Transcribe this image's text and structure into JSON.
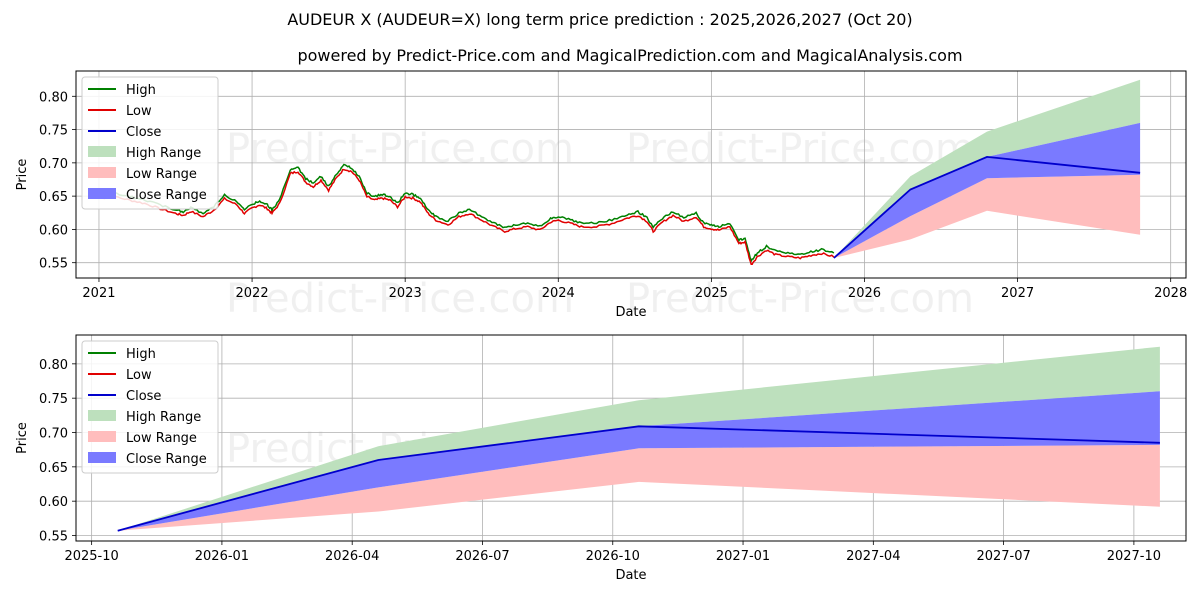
{
  "title": "AUDEUR X (AUDEUR=X) long term price prediction : 2025,2026,2027 (Oct 20)",
  "subtitle": "powered by Predict-Price.com and MagicalPrediction.com and MagicalAnalysis.com",
  "watermark": "Predict-Price.com",
  "colors": {
    "high": "#008000",
    "low": "#e00000",
    "close": "#0000cc",
    "high_range": "#bde0bd",
    "low_range": "#ffbdbd",
    "close_range": "#7a7aff"
  },
  "chart_data": [
    {
      "type": "line",
      "name": "history-and-forecast",
      "xlabel": "Date",
      "ylabel": "Price",
      "xlim": [
        2020.85,
        2028.1
      ],
      "ylim": [
        0.527,
        0.838
      ],
      "x_ticks": [
        2021,
        2022,
        2023,
        2024,
        2025,
        2026,
        2027,
        2028
      ],
      "x_tick_labels": [
        "2021",
        "2022",
        "2023",
        "2024",
        "2025",
        "2026",
        "2027",
        "2028"
      ],
      "y_ticks": [
        0.55,
        0.6,
        0.65,
        0.7,
        0.75,
        0.8
      ],
      "y_tick_labels": [
        "0.55",
        "0.60",
        "0.65",
        "0.70",
        "0.75",
        "0.80"
      ],
      "legend": [
        "High",
        "Low",
        "Close",
        "High Range",
        "Low Range",
        "Close Range"
      ],
      "legend_position": "upper-left",
      "history_x": [
        2021.0,
        2021.1,
        2021.2,
        2021.3,
        2021.4,
        2021.5,
        2021.55,
        2021.6,
        2021.68,
        2021.75,
        2021.82,
        2021.9,
        2021.95,
        2022.0,
        2022.05,
        2022.1,
        2022.13,
        2022.18,
        2022.25,
        2022.3,
        2022.35,
        2022.4,
        2022.45,
        2022.5,
        2022.55,
        2022.6,
        2022.65,
        2022.7,
        2022.75,
        2022.8,
        2022.85,
        2022.9,
        2022.95,
        2023.0,
        2023.05,
        2023.1,
        2023.15,
        2023.2,
        2023.28,
        2023.35,
        2023.42,
        2023.5,
        2023.58,
        2023.65,
        2023.72,
        2023.8,
        2023.88,
        2023.95,
        2024.0,
        2024.08,
        2024.15,
        2024.25,
        2024.35,
        2024.45,
        2024.52,
        2024.58,
        2024.62,
        2024.68,
        2024.75,
        2024.82,
        2024.9,
        2024.95,
        2025.0,
        2025.05,
        2025.12,
        2025.18,
        2025.22,
        2025.26,
        2025.3,
        2025.36,
        2025.42,
        2025.5,
        2025.58,
        2025.65,
        2025.72,
        2025.8
      ],
      "history_close": [
        0.648,
        0.65,
        0.645,
        0.64,
        0.632,
        0.625,
        0.622,
        0.628,
        0.62,
        0.63,
        0.647,
        0.638,
        0.625,
        0.633,
        0.638,
        0.632,
        0.625,
        0.64,
        0.685,
        0.688,
        0.672,
        0.665,
        0.675,
        0.66,
        0.678,
        0.692,
        0.688,
        0.675,
        0.65,
        0.645,
        0.648,
        0.645,
        0.635,
        0.65,
        0.648,
        0.642,
        0.625,
        0.615,
        0.608,
        0.62,
        0.625,
        0.615,
        0.605,
        0.598,
        0.602,
        0.605,
        0.6,
        0.612,
        0.615,
        0.61,
        0.605,
        0.605,
        0.61,
        0.618,
        0.622,
        0.613,
        0.598,
        0.612,
        0.622,
        0.613,
        0.62,
        0.605,
        0.602,
        0.6,
        0.605,
        0.58,
        0.582,
        0.548,
        0.56,
        0.57,
        0.563,
        0.56,
        0.558,
        0.562,
        0.565,
        0.56
      ],
      "forecast_x": [
        2025.8,
        2026.3,
        2026.8,
        2027.8
      ],
      "forecast_close": [
        0.557,
        0.66,
        0.709,
        0.685
      ],
      "close_range_low": [
        0.557,
        0.62,
        0.677,
        0.682
      ],
      "close_range_high": [
        0.557,
        0.66,
        0.709,
        0.76
      ],
      "high_range_high": [
        0.557,
        0.68,
        0.747,
        0.825
      ],
      "low_range_low": [
        0.557,
        0.585,
        0.628,
        0.592
      ]
    },
    {
      "type": "line",
      "name": "forecast-zoom",
      "xlabel": "Date",
      "ylabel": "Price",
      "xlim": [
        2025.72,
        2027.85
      ],
      "ylim": [
        0.542,
        0.842
      ],
      "x_ticks": [
        2025.75,
        2026.0,
        2026.25,
        2026.5,
        2026.75,
        2027.0,
        2027.25,
        2027.5,
        2027.75
      ],
      "x_tick_labels": [
        "2025-10",
        "2026-01",
        "2026-04",
        "2026-07",
        "2026-10",
        "2027-01",
        "2027-04",
        "2027-07",
        "2027-10"
      ],
      "y_ticks": [
        0.55,
        0.6,
        0.65,
        0.7,
        0.75,
        0.8
      ],
      "y_tick_labels": [
        "0.55",
        "0.60",
        "0.65",
        "0.70",
        "0.75",
        "0.80"
      ],
      "legend": [
        "High",
        "Low",
        "Close",
        "High Range",
        "Low Range",
        "Close Range"
      ],
      "legend_position": "upper-left",
      "forecast_x": [
        2025.8,
        2026.3,
        2026.8,
        2027.8
      ],
      "forecast_close": [
        0.557,
        0.66,
        0.709,
        0.685
      ],
      "close_range_low": [
        0.557,
        0.62,
        0.677,
        0.682
      ],
      "close_range_high": [
        0.557,
        0.66,
        0.709,
        0.76
      ],
      "high_range_high": [
        0.557,
        0.68,
        0.747,
        0.825
      ],
      "low_range_low": [
        0.557,
        0.585,
        0.628,
        0.592
      ]
    }
  ]
}
